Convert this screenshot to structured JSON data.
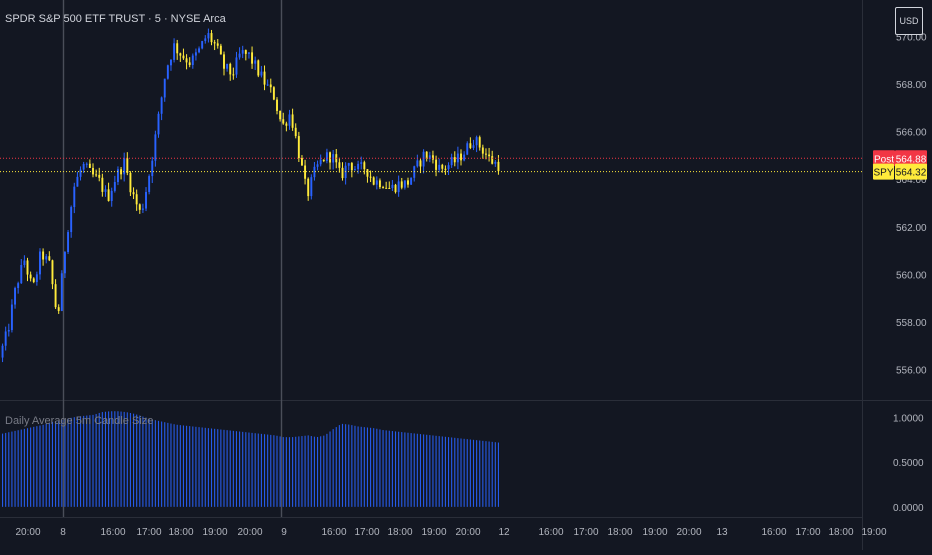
{
  "header": {
    "title": "SPDR S&P 500 ETF TRUST · 5 · NYSE Arca",
    "currency": "USD"
  },
  "indicator": {
    "label": "Daily Average 5m Candle Size"
  },
  "colors": {
    "background": "#131722",
    "up": "#2962ff",
    "down": "#ffeb3b",
    "post_line": "#f23645",
    "last_line": "#ffeb3b",
    "histogram": "#2962ff",
    "axis_text": "#b2b5be",
    "separator": "#787b86"
  },
  "price_badges": [
    {
      "tag": "Post",
      "value": "564.88",
      "price": 564.88,
      "tag_bg": "#f23645",
      "tag_fg": "#ffffff",
      "value_bg": "#f23645",
      "value_fg": "#ffffff"
    },
    {
      "tag": "SPY",
      "value": "564.32",
      "price": 564.32,
      "tag_bg": "#ffeb3b",
      "tag_fg": "#131722",
      "value_bg": "#ffeb3b",
      "value_fg": "#131722"
    }
  ],
  "chart_data": [
    {
      "type": "candlestick",
      "title": "SPDR S&P 500 ETF TRUST · 5 · NYSE Arca",
      "ylim": [
        554.8,
        571.2
      ],
      "yticks": [
        "556.00",
        "558.00",
        "560.00",
        "562.00",
        "564.00",
        "566.00",
        "568.00",
        "570.00"
      ],
      "ytick_values": [
        556,
        558,
        560,
        562,
        564,
        566,
        568,
        570
      ],
      "x_ticks": [
        "20:00",
        "8",
        "16:00",
        "17:00",
        "18:00",
        "19:00",
        "20:00",
        "9",
        "16:00",
        "17:00",
        "18:00",
        "19:00",
        "20:00",
        "12",
        "16:00",
        "17:00",
        "18:00",
        "19:00",
        "20:00",
        "13",
        "16:00",
        "17:00",
        "18:00",
        "19:00"
      ],
      "series": [
        {
          "name": "SPY",
          "path": [
            556.5,
            557.6,
            559.5,
            560.6,
            559.3,
            560.9,
            560.4,
            558.1,
            561.5,
            563.7,
            564.6,
            564.2,
            563.9,
            563.2,
            564.1,
            564.7,
            563.4,
            562.5,
            564.2,
            566.3,
            568.6,
            569.6,
            569.2,
            568.9,
            569.4,
            570.1,
            569.6,
            568.7,
            568.4,
            569.3,
            569.2,
            568.6,
            568.0,
            567.5,
            566.2,
            566.8,
            565.1,
            563.3,
            564.4,
            564.9,
            565.0,
            564.1,
            564.7,
            564.4,
            564.5,
            563.9,
            563.9,
            563.6,
            563.8,
            563.8,
            564.4,
            565.0,
            564.9,
            564.4,
            564.6,
            564.8,
            565.2,
            565.7,
            565.3,
            564.8,
            564.6
          ]
        }
      ],
      "last_price": 564.32,
      "post_price": 564.88
    },
    {
      "type": "bar",
      "title": "Daily Average 5m Candle Size",
      "ylim": [
        -0.08,
        1.14
      ],
      "yticks": [
        "1.0000",
        "0.5000",
        "0.0000"
      ],
      "ytick_values": [
        1.0,
        0.5,
        0.0
      ],
      "series": [
        {
          "name": "Daily Average 5m Candle Size",
          "path": [
            0.82,
            0.84,
            0.86,
            0.88,
            0.9,
            0.92,
            0.95,
            0.97,
            0.99,
            1.01,
            1.02,
            1.03,
            1.06,
            1.07,
            1.07,
            1.06,
            1.04,
            1.01,
            0.98,
            0.96,
            0.94,
            0.92,
            0.91,
            0.9,
            0.89,
            0.88,
            0.87,
            0.86,
            0.85,
            0.84,
            0.83,
            0.82,
            0.81,
            0.8,
            0.78,
            0.78,
            0.79,
            0.8,
            0.78,
            0.8,
            0.87,
            0.93,
            0.92,
            0.9,
            0.89,
            0.88,
            0.86,
            0.85,
            0.84,
            0.83,
            0.82,
            0.81,
            0.8,
            0.79,
            0.78,
            0.77,
            0.76,
            0.75,
            0.74,
            0.73,
            0.72
          ]
        }
      ]
    }
  ]
}
